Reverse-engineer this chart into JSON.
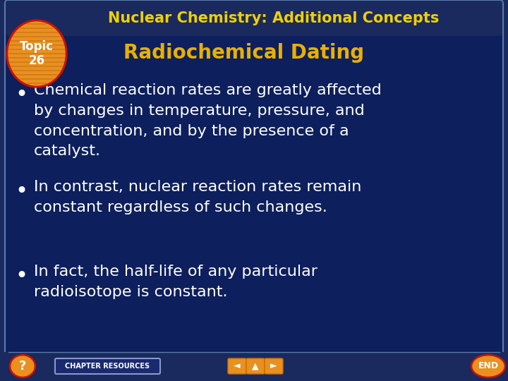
{
  "bg_outer": "#1a2a5e",
  "bg_inner": "#0d1f5c",
  "bg_title_bar": "#1a2a5e",
  "border_color": "#5a7aaa",
  "title_text": "Nuclear Chemistry: Additional Concepts",
  "title_color": "#f0d000",
  "subtitle_text": "Radiochemical Dating",
  "subtitle_color": "#e8b000",
  "topic_circle_red": "#cc1100",
  "topic_circle_orange": "#e89020",
  "topic_label": "Topic\n26",
  "topic_label_color": "#ffffff",
  "bullets": [
    "Chemical reaction rates are greatly affected\nby changes in temperature, pressure, and\nconcentration, and by the presence of a\ncatalyst.",
    "In contrast, nuclear reaction rates remain\nconstant regardless of such changes.",
    "In fact, the half-life of any particular\nradioisotope is constant."
  ],
  "bullet_color": "#ffffff",
  "bullet_fontsize": 16,
  "title_fontsize": 15,
  "subtitle_fontsize": 20,
  "topic_fontsize": 12,
  "footer_bg": "#1a2a5e",
  "footer_text": "CHAPTER RESOURCES",
  "footer_text_color": "#ffffff",
  "footer_text_fontsize": 7,
  "nav_button_color": "#e89020",
  "nav_button_border": "#cc7000",
  "end_button_color": "#e89020",
  "question_color": "#e89020"
}
